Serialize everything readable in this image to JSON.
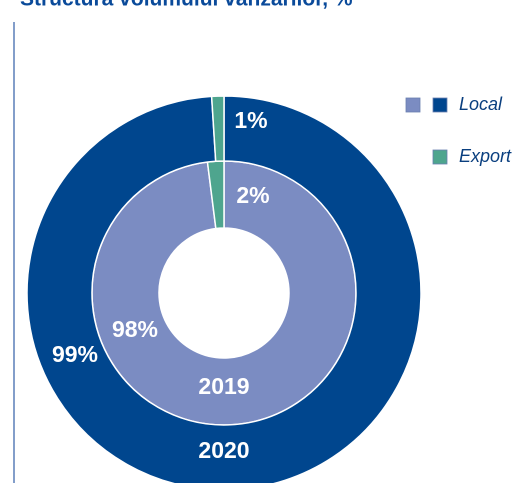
{
  "chart_data": {
    "type": "donut",
    "title": "Structura volumului vânzărilor, %",
    "categories": [
      "Local",
      "Export"
    ],
    "series": [
      {
        "name": "2019",
        "values": [
          98,
          2
        ],
        "value_labels": [
          "98%",
          "2%"
        ],
        "colors": [
          "#7b8cc2",
          "#4ea58e"
        ]
      },
      {
        "name": "2020",
        "values": [
          99,
          1
        ],
        "value_labels": [
          "99%",
          "1%"
        ],
        "colors": [
          "#00468e",
          "#4ea58e"
        ]
      }
    ]
  }
}
